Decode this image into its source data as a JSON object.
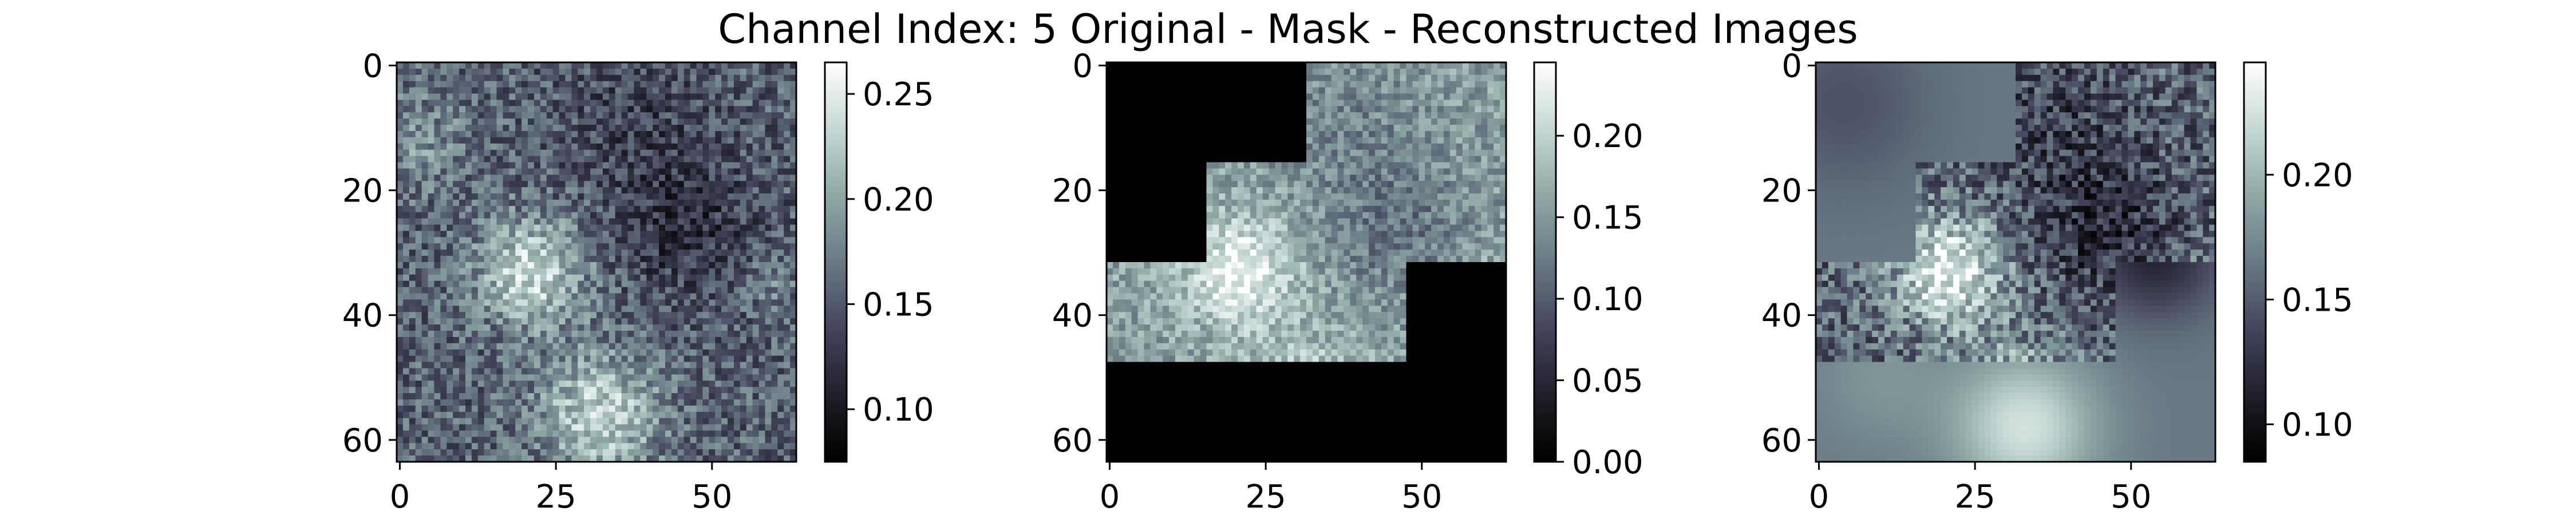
{
  "title": "Channel Index: 5 Original - Mask - Reconstructed Images",
  "colormap": [
    "#000000",
    "#141418",
    "#2b2b3c",
    "#44445c",
    "#5c6878",
    "#758a8f",
    "#8fa8a5",
    "#b1c9c5",
    "#d8e5e2",
    "#ffffff"
  ],
  "chart_data": [
    {
      "type": "heatmap",
      "name": "Original",
      "grid_size": [
        64,
        64
      ],
      "x_ticks": [
        "0",
        "25",
        "50"
      ],
      "y_ticks": [
        "0",
        "20",
        "40",
        "60"
      ],
      "colorbar": {
        "range": [
          0.075,
          0.265
        ],
        "ticks": [
          "0.10",
          "0.15",
          "0.20",
          "0.25"
        ]
      }
    },
    {
      "type": "heatmap",
      "name": "Mask",
      "grid_size": [
        64,
        64
      ],
      "x_ticks": [
        "0",
        "25",
        "50"
      ],
      "y_ticks": [
        "0",
        "20",
        "40",
        "60"
      ],
      "masked_value": 0,
      "visible_blocks_16px": [
        [
          2,
          0
        ],
        [
          3,
          0
        ],
        [
          1,
          1
        ],
        [
          2,
          1
        ],
        [
          3,
          1
        ],
        [
          0,
          2
        ],
        [
          1,
          2
        ],
        [
          2,
          2
        ]
      ],
      "colorbar": {
        "range": [
          0.0,
          0.245
        ],
        "ticks": [
          "0.00",
          "0.05",
          "0.10",
          "0.15",
          "0.20"
        ]
      }
    },
    {
      "type": "heatmap",
      "name": "Reconstructed",
      "grid_size": [
        64,
        64
      ],
      "x_ticks": [
        "0",
        "25",
        "50"
      ],
      "y_ticks": [
        "0",
        "20",
        "40",
        "60"
      ],
      "colorbar": {
        "range": [
          0.085,
          0.245
        ],
        "ticks": [
          "0.10",
          "0.15",
          "0.20"
        ]
      }
    }
  ]
}
